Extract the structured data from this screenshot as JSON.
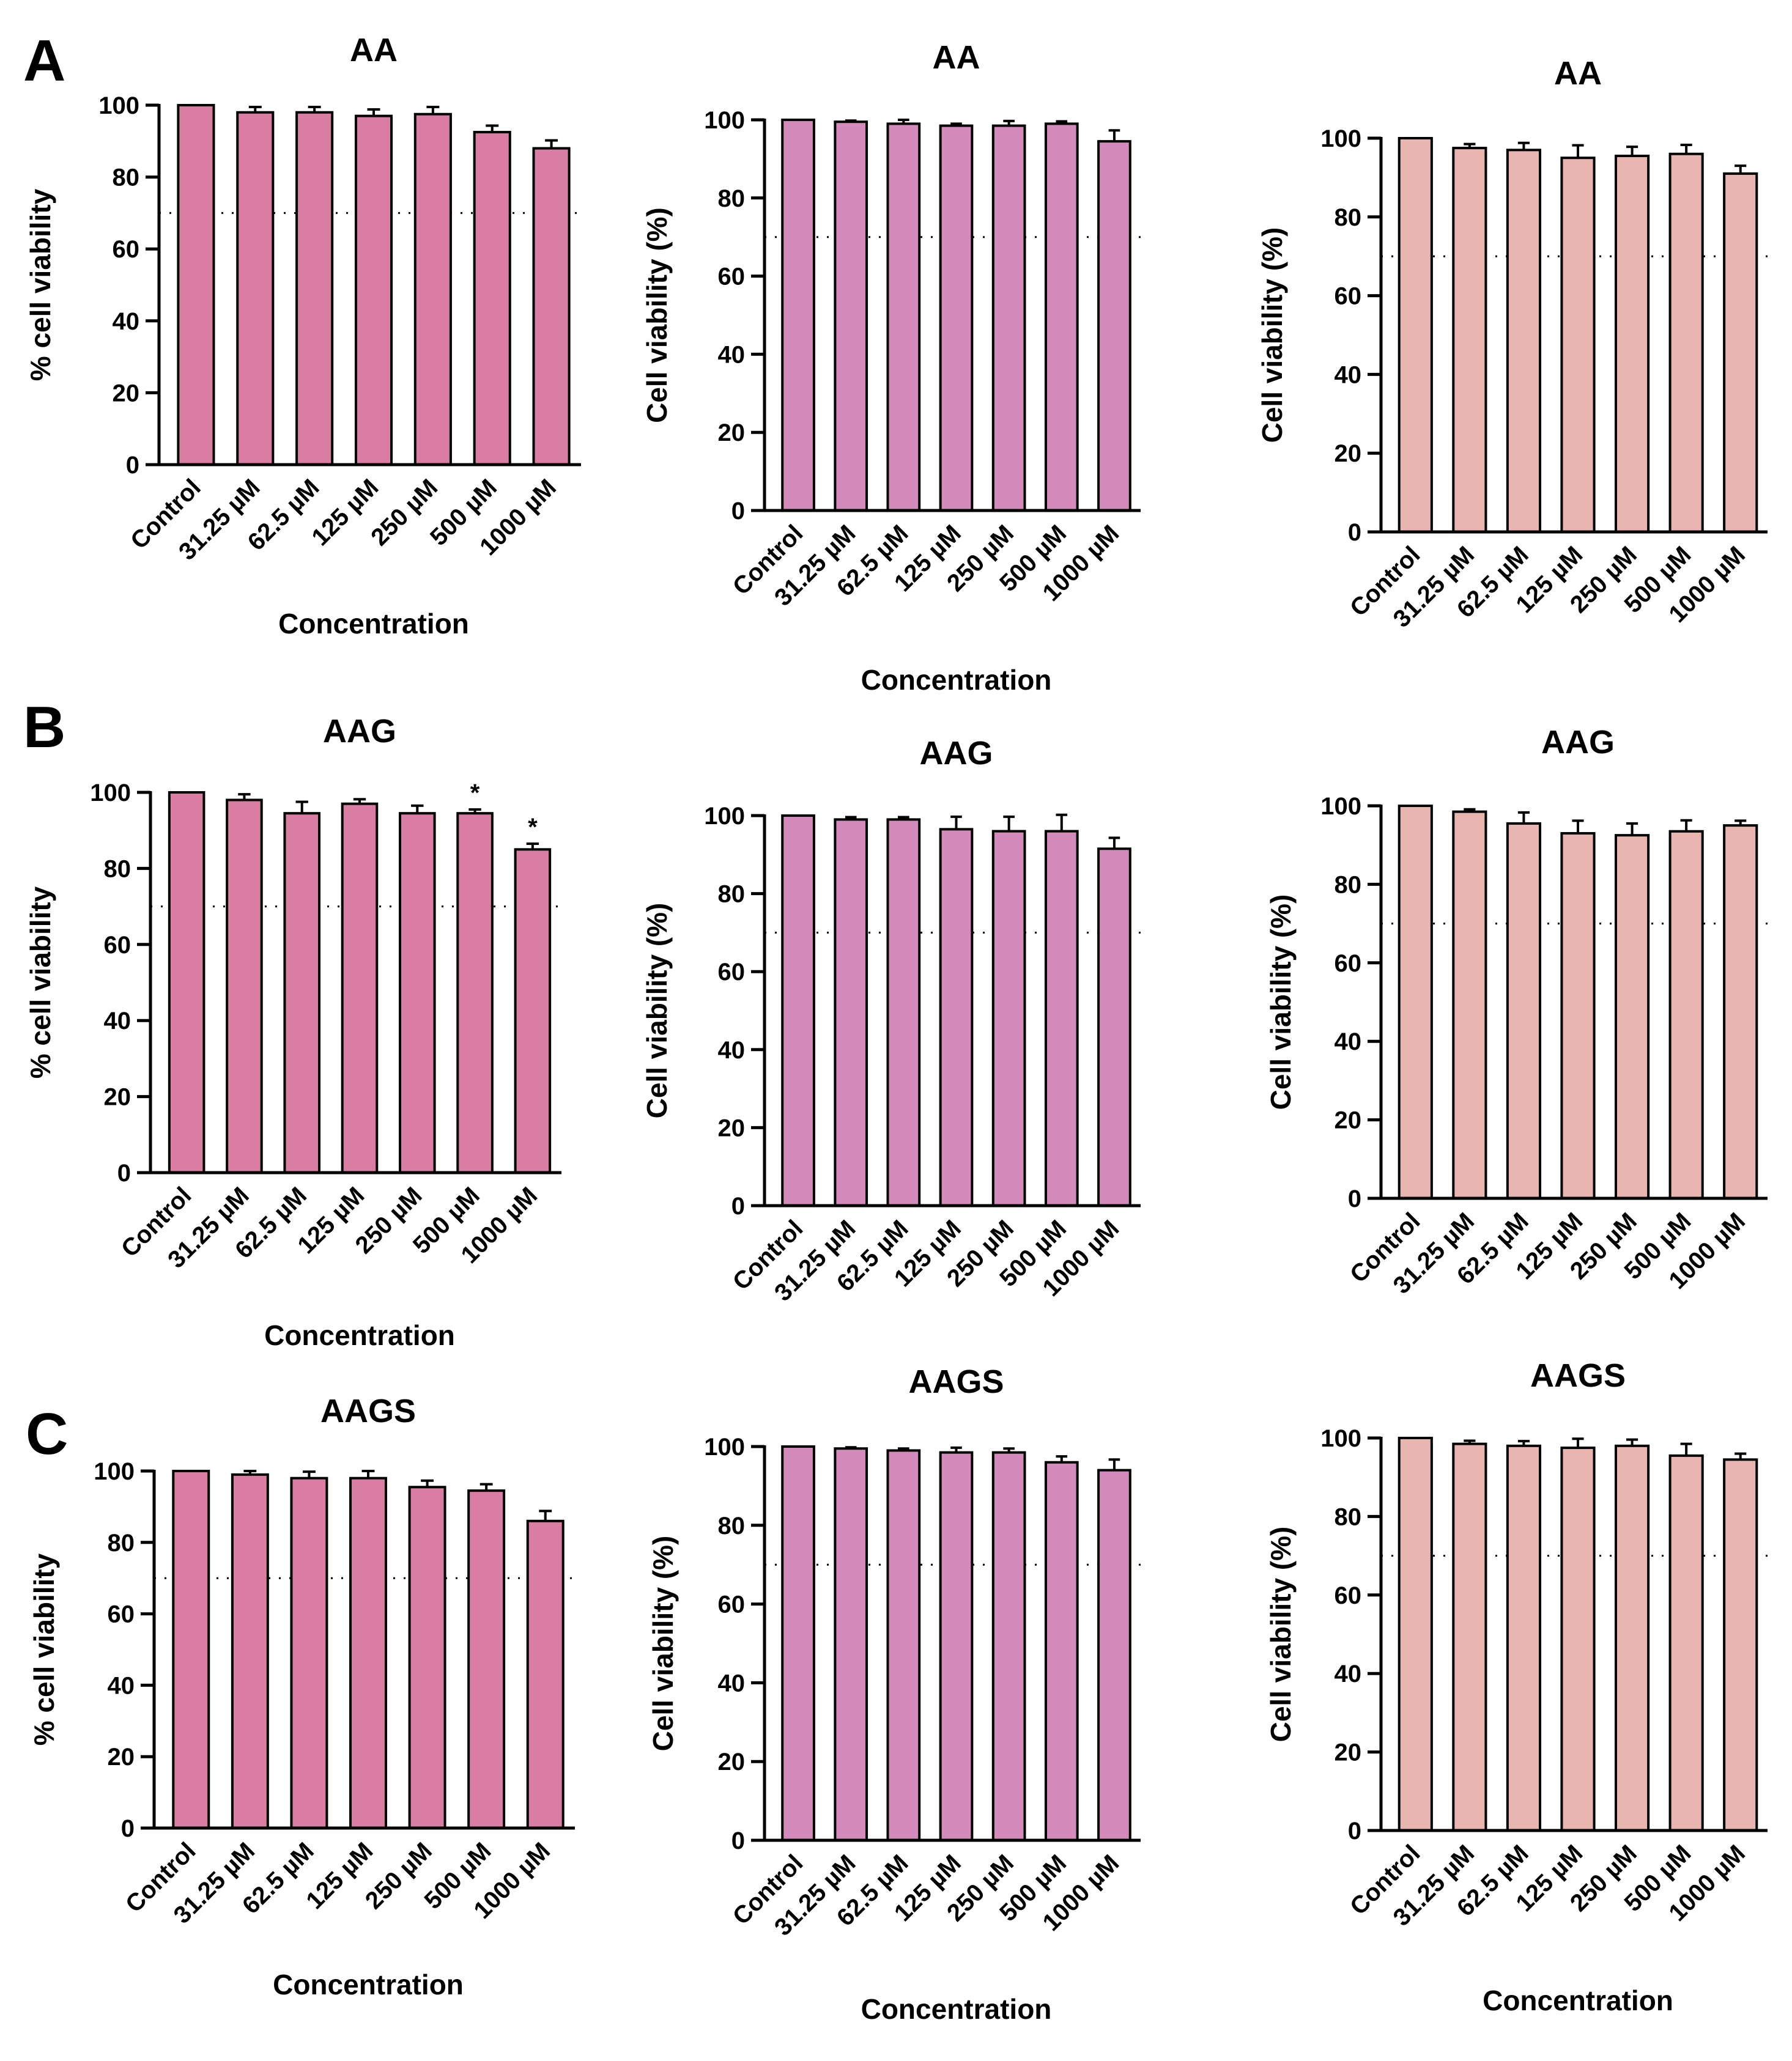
{
  "panels": [
    {
      "letter": "A"
    },
    {
      "letter": "B"
    },
    {
      "letter": "C"
    }
  ],
  "colors": {
    "col1": "#d97da3",
    "col2": "#d48bbb",
    "col3": "#e8b5b1",
    "stroke": "#000000"
  },
  "chart_data": [
    {
      "type": "bar",
      "title": "AA",
      "xlabel": "Concentration",
      "ylabel": "% cell viability",
      "ylim": [
        0,
        100
      ],
      "yticks": [
        0,
        20,
        40,
        60,
        80,
        100
      ],
      "threshold": 70,
      "categories": [
        "Control",
        "31.25 µM",
        "62.5 µM",
        "125 µM",
        "250 µM",
        "500 µM",
        "1000 µM"
      ],
      "values": [
        100,
        98,
        98,
        97,
        97.5,
        92.5,
        88
      ],
      "errors": [
        0,
        1.5,
        1.5,
        1.8,
        2,
        1.8,
        2.2
      ],
      "significance": [
        "",
        "",
        "",
        "",
        "",
        "",
        ""
      ],
      "color": "col1"
    },
    {
      "type": "bar",
      "title": "AA",
      "xlabel": "Concentration",
      "ylabel": "Cell viability (%)",
      "ylim": [
        0,
        100
      ],
      "yticks": [
        0,
        20,
        40,
        60,
        80,
        100
      ],
      "threshold": 70,
      "categories": [
        "Control",
        "31.25 µM",
        "62.5 µM",
        "125 µM",
        "250 µM",
        "500 µM",
        "1000 µM"
      ],
      "values": [
        100,
        99.5,
        99,
        98.5,
        98.5,
        99,
        94.5
      ],
      "errors": [
        0,
        0.3,
        1,
        0.5,
        1.2,
        0.6,
        2.8
      ],
      "significance": [
        "",
        "",
        "",
        "",
        "",
        "",
        ""
      ],
      "color": "col2"
    },
    {
      "type": "bar",
      "title": "AA",
      "xlabel": "",
      "ylabel": "Cell viability (%)",
      "ylim": [
        0,
        100
      ],
      "yticks": [
        0,
        20,
        40,
        60,
        80,
        100
      ],
      "threshold": 70,
      "categories": [
        "Control",
        "31.25 µM",
        "62.5 µM",
        "125 µM",
        "250 µM",
        "500 µM",
        "1000 µM"
      ],
      "values": [
        100,
        97.5,
        97,
        95,
        95.5,
        96,
        91
      ],
      "errors": [
        0,
        1,
        1.8,
        3.2,
        2.3,
        2.3,
        2
      ],
      "significance": [
        "",
        "",
        "",
        "",
        "",
        "",
        ""
      ],
      "color": "col3"
    },
    {
      "type": "bar",
      "title": "AAG",
      "xlabel": "Concentration",
      "ylabel": "% cell viability",
      "ylim": [
        0,
        100
      ],
      "yticks": [
        0,
        20,
        40,
        60,
        80,
        100
      ],
      "threshold": 70,
      "categories": [
        "Control",
        "31.25 µM",
        "62.5 µM",
        "125 µM",
        "250 µM",
        "500 µM",
        "1000 µM"
      ],
      "values": [
        100,
        98,
        94.5,
        97,
        94.5,
        94.5,
        85
      ],
      "errors": [
        0,
        1.5,
        3,
        1.2,
        2,
        1,
        1.5
      ],
      "significance": [
        "",
        "",
        "",
        "",
        "",
        "*",
        "*"
      ],
      "color": "col1"
    },
    {
      "type": "bar",
      "title": "AAG",
      "xlabel": "",
      "ylabel": "Cell viability (%)",
      "ylim": [
        0,
        100
      ],
      "yticks": [
        0,
        20,
        40,
        60,
        80,
        100
      ],
      "threshold": 70,
      "categories": [
        "Control",
        "31.25 µM",
        "62.5 µM",
        "125 µM",
        "250 µM",
        "500 µM",
        "1000 µM"
      ],
      "values": [
        100,
        99,
        99,
        96.5,
        96,
        96,
        91.5
      ],
      "errors": [
        0,
        0.6,
        0.6,
        3.2,
        3.7,
        4.2,
        2.8
      ],
      "significance": [
        "",
        "",
        "",
        "",
        "",
        "",
        ""
      ],
      "color": "col2"
    },
    {
      "type": "bar",
      "title": "AAG",
      "xlabel": "",
      "ylabel": "Cell viability (%)",
      "ylim": [
        0,
        100
      ],
      "yticks": [
        0,
        20,
        40,
        60,
        80,
        100
      ],
      "threshold": 70,
      "categories": [
        "Control",
        "31.25 µM",
        "62.5 µM",
        "125 µM",
        "250 µM",
        "500 µM",
        "1000 µM"
      ],
      "values": [
        100,
        98.5,
        95.5,
        93,
        92.5,
        93.5,
        95
      ],
      "errors": [
        0,
        0.6,
        2.8,
        3.2,
        3,
        2.8,
        1.2
      ],
      "significance": [
        "",
        "",
        "",
        "",
        "",
        "",
        ""
      ],
      "color": "col3"
    },
    {
      "type": "bar",
      "title": "AAGS",
      "xlabel": "Concentration",
      "ylabel": "% cell viability",
      "ylim": [
        0,
        100
      ],
      "yticks": [
        0,
        20,
        40,
        60,
        80,
        100
      ],
      "threshold": 70,
      "categories": [
        "Control",
        "31.25 µM",
        "62.5 µM",
        "125 µM",
        "250 µM",
        "500 µM",
        "1000 µM"
      ],
      "values": [
        100,
        99,
        98,
        98,
        95.5,
        94.5,
        86
      ],
      "errors": [
        0,
        1,
        1.8,
        2,
        1.8,
        1.8,
        2.8
      ],
      "significance": [
        "",
        "",
        "",
        "",
        "",
        "",
        ""
      ],
      "color": "col1"
    },
    {
      "type": "bar",
      "title": "AAGS",
      "xlabel": "Concentration",
      "ylabel": "Cell viability (%)",
      "ylim": [
        0,
        100
      ],
      "yticks": [
        0,
        20,
        40,
        60,
        80,
        100
      ],
      "threshold": 70,
      "categories": [
        "Control",
        "31.25 µM",
        "62.5 µM",
        "125 µM",
        "250 µM",
        "500 µM",
        "1000 µM"
      ],
      "values": [
        100,
        99.5,
        99,
        98.5,
        98.5,
        96,
        94
      ],
      "errors": [
        0,
        0.3,
        0.5,
        1.2,
        1,
        1.5,
        2.7
      ],
      "significance": [
        "",
        "",
        "",
        "",
        "",
        "",
        ""
      ],
      "color": "col2"
    },
    {
      "type": "bar",
      "title": "AAGS",
      "xlabel": "Concentration",
      "ylabel": "Cell viability (%)",
      "ylim": [
        0,
        100
      ],
      "yticks": [
        0,
        20,
        40,
        60,
        80,
        100
      ],
      "threshold": 70,
      "categories": [
        "Control",
        "31.25 µM",
        "62.5 µM",
        "125 µM",
        "250 µM",
        "500 µM",
        "1000 µM"
      ],
      "values": [
        100,
        98.5,
        98,
        97.5,
        98,
        95.5,
        94.5
      ],
      "errors": [
        0,
        0.8,
        1.2,
        2.3,
        1.6,
        3,
        1.5
      ],
      "significance": [
        "",
        "",
        "",
        "",
        "",
        "",
        ""
      ],
      "color": "col3"
    }
  ]
}
